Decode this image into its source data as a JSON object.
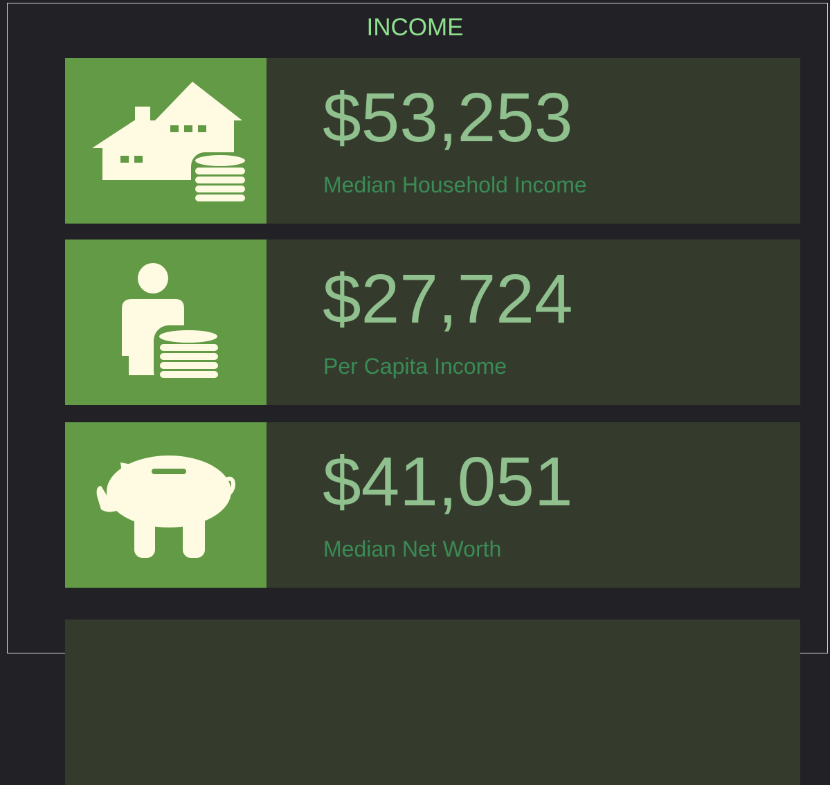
{
  "title": "INCOME",
  "cards": [
    {
      "value": "$53,253",
      "label": "Median Household Income"
    },
    {
      "value": "$27,724",
      "label": "Per Capita Income"
    },
    {
      "value": "$41,051",
      "label": "Median Net Worth"
    }
  ]
}
